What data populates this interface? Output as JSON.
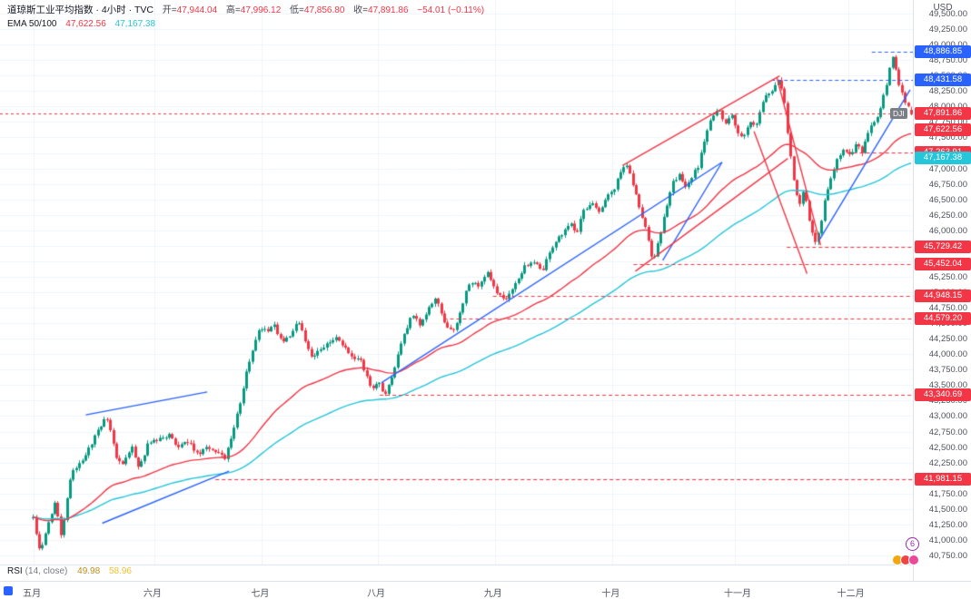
{
  "header": {
    "symbol_title": "道琼斯工业平均指数 · 4小时 · TVC",
    "ohlc": {
      "open_label": "开",
      "open": "47,944.04",
      "high_label": "高",
      "high": "47,996.12",
      "low_label": "低",
      "low": "47,856.80",
      "close_label": "收",
      "close": "47,891.86",
      "change": "−54.01 (−0.11%)"
    },
    "ema_indicator": {
      "label": "EMA 50/100",
      "ema50": "47,622.56",
      "ema100": "47,167.38"
    }
  },
  "rsi_indicator": {
    "label": "RSI",
    "params": "(14, close)",
    "value": "49.98",
    "ma_value": "58.96"
  },
  "price_axis": {
    "currency": "USD",
    "min": 40750,
    "max": 49500,
    "step": 250,
    "tags": [
      {
        "text": "48,886.85",
        "price": 48886.85,
        "bg": "#2962ff"
      },
      {
        "text": "48,431.58",
        "price": 48431.58,
        "bg": "#2962ff"
      },
      {
        "text": "47,891.86",
        "price": 47891.86,
        "bg": "#f23645",
        "prefix": "DJI"
      },
      {
        "text": "47,622.56",
        "price": 47622.56,
        "bg": "#f23645"
      },
      {
        "text": "47,263.91",
        "price": 47263.91,
        "bg": "#f23645"
      },
      {
        "text": "47,167.38",
        "price": 47167.38,
        "bg": "#26c6da"
      },
      {
        "text": "45,729.42",
        "price": 45729.42,
        "bg": "#f23645"
      },
      {
        "text": "45,452.04",
        "price": 45452.04,
        "bg": "#f23645"
      },
      {
        "text": "44,948.15",
        "price": 44948.15,
        "bg": "#f23645"
      },
      {
        "text": "44,579.20",
        "price": 44579.2,
        "bg": "#f23645"
      },
      {
        "text": "43,340.69",
        "price": 43340.69,
        "bg": "#f23645"
      },
      {
        "text": "41,981.15",
        "price": 41981.15,
        "bg": "#f23645"
      }
    ]
  },
  "time_axis": {
    "months": [
      {
        "label": "五月",
        "x": 0.037
      },
      {
        "label": "六月",
        "x": 0.169
      },
      {
        "label": "七月",
        "x": 0.287
      },
      {
        "label": "八月",
        "x": 0.414
      },
      {
        "label": "九月",
        "x": 0.542
      },
      {
        "label": "十月",
        "x": 0.671
      },
      {
        "label": "十一月",
        "x": 0.805
      },
      {
        "label": "十二月",
        "x": 0.929
      }
    ]
  },
  "colors": {
    "bg": "#ffffff",
    "grid": "#f0f3fa",
    "border": "#dde1ea",
    "up": "#089981",
    "down": "#f23645",
    "ema50": "#f23645",
    "ema100": "#26c6da",
    "blue": "#2962ff",
    "red": "#f23645",
    "last_price_line": "#f23645",
    "axis_text": "#50535e"
  },
  "misc": {
    "badge": "6",
    "emoji_colors": [
      "#f6a609",
      "#ef4444",
      "#ec4899"
    ],
    "tf_color": "#2962ff"
  },
  "chart_data": {
    "type": "candlestick",
    "symbol": "DJI",
    "title": "道琼斯工业平均指数",
    "timeframe": "4小时",
    "exchange": "TVC",
    "last": {
      "open": 47944.04,
      "high": 47996.12,
      "low": 47856.8,
      "close": 47891.86,
      "change": -54.01,
      "change_pct": -0.11
    },
    "ema50": 47622.56,
    "ema100": 47167.38,
    "rsi": 49.98,
    "rsi_ma": 58.96,
    "y_range": [
      40750,
      49500
    ],
    "x_months": [
      "五月",
      "六月",
      "七月",
      "八月",
      "九月",
      "十月",
      "十一月",
      "十二月"
    ],
    "price_path": [
      [
        0.036,
        41350
      ],
      [
        0.044,
        40800
      ],
      [
        0.052,
        41250
      ],
      [
        0.06,
        41600
      ],
      [
        0.067,
        41050
      ],
      [
        0.078,
        42100
      ],
      [
        0.09,
        42300
      ],
      [
        0.1,
        42550
      ],
      [
        0.112,
        42900
      ],
      [
        0.118,
        42950
      ],
      [
        0.127,
        42350
      ],
      [
        0.135,
        42220
      ],
      [
        0.144,
        42500
      ],
      [
        0.152,
        42150
      ],
      [
        0.162,
        42550
      ],
      [
        0.174,
        42620
      ],
      [
        0.184,
        42700
      ],
      [
        0.194,
        42500
      ],
      [
        0.204,
        42620
      ],
      [
        0.217,
        42350
      ],
      [
        0.227,
        42520
      ],
      [
        0.237,
        42420
      ],
      [
        0.246,
        42300
      ],
      [
        0.254,
        42700
      ],
      [
        0.261,
        43100
      ],
      [
        0.269,
        43650
      ],
      [
        0.277,
        44100
      ],
      [
        0.285,
        44450
      ],
      [
        0.294,
        44350
      ],
      [
        0.3,
        44480
      ],
      [
        0.309,
        44150
      ],
      [
        0.317,
        44300
      ],
      [
        0.327,
        44520
      ],
      [
        0.334,
        44200
      ],
      [
        0.341,
        43950
      ],
      [
        0.351,
        44100
      ],
      [
        0.361,
        44160
      ],
      [
        0.369,
        44280
      ],
      [
        0.377,
        44100
      ],
      [
        0.387,
        43900
      ],
      [
        0.394,
        43960
      ],
      [
        0.401,
        43650
      ],
      [
        0.407,
        43420
      ],
      [
        0.414,
        43600
      ],
      [
        0.421,
        43330
      ],
      [
        0.427,
        43520
      ],
      [
        0.437,
        44050
      ],
      [
        0.447,
        44500
      ],
      [
        0.454,
        44660
      ],
      [
        0.461,
        44450
      ],
      [
        0.469,
        44780
      ],
      [
        0.477,
        44920
      ],
      [
        0.487,
        44460
      ],
      [
        0.497,
        44360
      ],
      [
        0.507,
        44860
      ],
      [
        0.514,
        45160
      ],
      [
        0.524,
        45100
      ],
      [
        0.534,
        45320
      ],
      [
        0.544,
        44960
      ],
      [
        0.554,
        44860
      ],
      [
        0.564,
        45160
      ],
      [
        0.574,
        45400
      ],
      [
        0.584,
        45520
      ],
      [
        0.594,
        45360
      ],
      [
        0.604,
        45720
      ],
      [
        0.614,
        45920
      ],
      [
        0.624,
        46120
      ],
      [
        0.631,
        45960
      ],
      [
        0.639,
        46300
      ],
      [
        0.649,
        46420
      ],
      [
        0.657,
        46260
      ],
      [
        0.664,
        46520
      ],
      [
        0.671,
        46620
      ],
      [
        0.679,
        46920
      ],
      [
        0.687,
        47060
      ],
      [
        0.694,
        46700
      ],
      [
        0.701,
        46350
      ],
      [
        0.709,
        45900
      ],
      [
        0.715,
        45480
      ],
      [
        0.721,
        45820
      ],
      [
        0.729,
        46320
      ],
      [
        0.737,
        46760
      ],
      [
        0.744,
        46920
      ],
      [
        0.751,
        46660
      ],
      [
        0.757,
        46860
      ],
      [
        0.764,
        47020
      ],
      [
        0.771,
        47460
      ],
      [
        0.779,
        47820
      ],
      [
        0.787,
        47960
      ],
      [
        0.794,
        47700
      ],
      [
        0.801,
        47860
      ],
      [
        0.807,
        47560
      ],
      [
        0.814,
        47500
      ],
      [
        0.821,
        47760
      ],
      [
        0.827,
        47660
      ],
      [
        0.834,
        48020
      ],
      [
        0.841,
        48220
      ],
      [
        0.849,
        48320
      ],
      [
        0.854,
        48430
      ],
      [
        0.859,
        48080
      ],
      [
        0.864,
        47380
      ],
      [
        0.869,
        46800
      ],
      [
        0.875,
        46400
      ],
      [
        0.881,
        46700
      ],
      [
        0.885,
        46200
      ],
      [
        0.889,
        45950
      ],
      [
        0.894,
        45760
      ],
      [
        0.899,
        46120
      ],
      [
        0.904,
        46520
      ],
      [
        0.911,
        46920
      ],
      [
        0.917,
        47160
      ],
      [
        0.924,
        47310
      ],
      [
        0.931,
        47200
      ],
      [
        0.937,
        47420
      ],
      [
        0.944,
        47260
      ],
      [
        0.949,
        47560
      ],
      [
        0.955,
        47700
      ],
      [
        0.961,
        47860
      ],
      [
        0.967,
        48120
      ],
      [
        0.973,
        48520
      ],
      [
        0.977,
        48880
      ],
      [
        0.981,
        48620
      ],
      [
        0.985,
        48320
      ],
      [
        0.989,
        48160
      ],
      [
        0.998,
        47892
      ]
    ],
    "levels": [
      {
        "price": 48886.85,
        "from": 0.955,
        "color": "#2962ff"
      },
      {
        "price": 48431.58,
        "from": 0.845,
        "color": "#2962ff"
      },
      {
        "price": 47263.91,
        "from": 0.928,
        "color": "#f23645"
      },
      {
        "price": 45729.42,
        "from": 0.862,
        "color": "#f23645"
      },
      {
        "price": 45452.04,
        "from": 0.694,
        "color": "#f23645"
      },
      {
        "price": 44948.15,
        "from": 0.54,
        "color": "#f23645"
      },
      {
        "price": 44579.2,
        "from": 0.486,
        "color": "#f23645"
      },
      {
        "price": 43340.69,
        "from": 0.416,
        "color": "#f23645"
      },
      {
        "price": 41981.15,
        "from": 0.236,
        "color": "#f23645"
      }
    ],
    "trendlines": [
      {
        "x1": 0.094,
        "p1": 43020,
        "x2": 0.227,
        "p2": 43390,
        "color": "#2962ff"
      },
      {
        "x1": 0.112,
        "p1": 41270,
        "x2": 0.251,
        "p2": 42110,
        "color": "#2962ff"
      },
      {
        "x1": 0.418,
        "p1": 43540,
        "x2": 0.791,
        "p2": 47100,
        "color": "#2962ff"
      },
      {
        "x1": 0.726,
        "p1": 45515,
        "x2": 0.791,
        "p2": 47100,
        "color": "#2962ff"
      },
      {
        "x1": 0.897,
        "p1": 45830,
        "x2": 0.997,
        "p2": 48270,
        "color": "#2962ff"
      },
      {
        "x1": 0.682,
        "p1": 47047,
        "x2": 0.854,
        "p2": 48493,
        "color": "#f23645"
      },
      {
        "x1": 0.696,
        "p1": 45340,
        "x2": 0.863,
        "p2": 47160,
        "color": "#f23645"
      },
      {
        "x1": 0.851,
        "p1": 48470,
        "x2": 0.899,
        "p2": 45760,
        "color": "#f23645"
      },
      {
        "x1": 0.826,
        "p1": 47600,
        "x2": 0.884,
        "p2": 45300,
        "color": "#f23645"
      }
    ]
  }
}
